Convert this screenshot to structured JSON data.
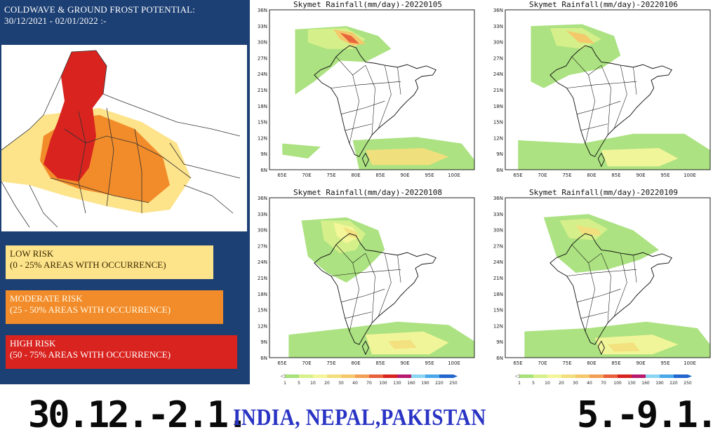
{
  "risk_panel": {
    "title_line1": "COLDWAVE & GROUND FROST POTENTIAL:",
    "title_line2": "30/12/2021 - 02/01/2022 :-",
    "legend": [
      {
        "name": "LOW RISK",
        "range": "(0 - 25% AREAS WITH OCCURRENCE)",
        "color": "#fde38a"
      },
      {
        "name": "MODERATE RISK",
        "range": "(25 - 50% AREAS WITH OCCURRENCE)",
        "color": "#f28c2a"
      },
      {
        "name": "HIGH RISK",
        "range": "(50 - 75% AREAS WITH OCCURRENCE)",
        "color": "#d8231f"
      }
    ],
    "background_color": "#1c3f74"
  },
  "rainfall_maps": [
    {
      "title": "Skymet Rainfall(mm/day)-20220105"
    },
    {
      "title": "Skymet Rainfall(mm/day)-20220106"
    },
    {
      "title": "Skymet Rainfall(mm/day)-20220108"
    },
    {
      "title": "Skymet Rainfall(mm/day)-20220109"
    }
  ],
  "map_axes": {
    "lat_labels": [
      "36N",
      "33N",
      "30N",
      "27N",
      "24N",
      "21N",
      "18N",
      "15N",
      "12N",
      "9N",
      "6N"
    ],
    "lon_labels": [
      "65E",
      "70E",
      "75E",
      "80E",
      "85E",
      "90E",
      "95E",
      "100E"
    ]
  },
  "colorbar": {
    "labels": [
      "1",
      "5",
      "10",
      "20",
      "30",
      "40",
      "70",
      "100",
      "130",
      "160",
      "190",
      "220",
      "250"
    ],
    "colors": [
      "#a8e07a",
      "#d7f08a",
      "#f4f59a",
      "#f2de7c",
      "#f6c66a",
      "#f29e55",
      "#e8603a",
      "#d8231f",
      "#b51a6c",
      "#8bd4f2",
      "#4aa8e8",
      "#2265cc"
    ]
  },
  "caption": {
    "date_left": "30.12.-2.1.",
    "countries": "INDIA, NEPAL,PAKISTAN",
    "date_right": "5.-9.1."
  }
}
